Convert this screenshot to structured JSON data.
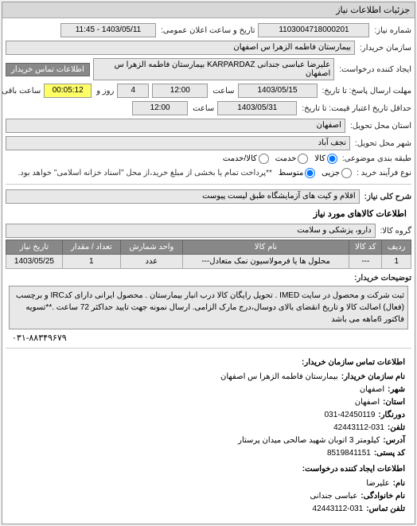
{
  "panel_title": "جزئیات اطلاعات نیاز",
  "form": {
    "req_no_lbl": "شماره نیاز:",
    "req_no": "1103004718000201",
    "announce_lbl": "تاریخ و ساعت اعلان عمومی:",
    "announce": "1403/05/11 - 11:45",
    "buyer_lbl": "سازمان خریدار:",
    "buyer": "بیمارستان فاطمه الزهرا س  اصفهان",
    "creator_lbl": "ایجاد کننده درخواست:",
    "creator": "علیرضا عباسی جندانی KARPARDAZ بیمارستان فاطمه الزهرا س  اصفهان",
    "contact_btn": "اطلاعات تماس خریدار",
    "deadline_lbl": "مهلت ارسال پاسخ: تا تاریخ:",
    "deadline_date": "1403/05/15",
    "deadline_time_lbl": "ساعت",
    "deadline_time": "12:00",
    "days_lbl": "روز و",
    "days": "4",
    "timer": "00:05:12",
    "remain_lbl": "ساعت باقی مانده",
    "credit_lbl": "حداقل تاریخ اعتبار قیمت: تا تاریخ:",
    "credit_date": "1403/05/31",
    "credit_time_lbl": "ساعت",
    "credit_time": "12:00",
    "province_lbl": "استان محل تحویل:",
    "province": "اصفهان",
    "city_lbl": "شهر محل تحویل:",
    "city": "نجف آباد",
    "package_lbl": "طبقه بندی موضوعی:",
    "pkg_goods": "کالا",
    "pkg_service": "خدمت",
    "pkg_both": "کالا/خدمت",
    "buy_type_lbl": "نوع فرآیند خرید :",
    "buy_small": "جزیی",
    "buy_mid": "متوسط",
    "buy_note": "**پرداخت تمام یا بخشی از مبلغ خرید،از محل \"اسناد خزانه اسلامی\" خواهد بود.",
    "desc_lbl": "شرح کلی نیاز:",
    "desc": "اقلام و کیت های آزمایشگاه طبق لیست پیوست"
  },
  "items_title": "اطلاعات کالاهای مورد نیاز",
  "group_lbl": "گروه کالا:",
  "group": "دارو، پزشکی و سلامت",
  "table": {
    "headers": [
      "ردیف",
      "کد کالا",
      "نام کالا",
      "واحد شمارش",
      "تعداد / مقدار",
      "تاریخ نیاز"
    ],
    "rows": [
      [
        "1",
        "---",
        "محلول ها یا فرمولاسیون نمک متعادل---",
        "عدد",
        "1",
        "1403/05/25"
      ]
    ]
  },
  "buyer_desc_lbl": "توضیحات خریدار:",
  "buyer_desc": "ثبت شرکت و محصول در سایت IMED . تحویل رایگان کالا درب انبار بیمارستان . محصول ایرانی دارای کدIRC و برچسب (فعال) اصالت کالا و تاریخ انقضای بالای دوسال،درج مارک الزامی. ارسال نمونه جهت تایید حداکثر 72 ساعت .**تسویه فاکتور 6ماهه می باشد",
  "phone_line": "۰۳۱-۸۸۳۴۹۶۷۹",
  "contact": {
    "title": "اطلاعات تماس سازمان خریدار:",
    "org_lbl": "نام سازمان خریدار:",
    "org": "بیمارستان فاطمه الزهرا س اصفهان",
    "city_lbl": "شهر:",
    "city": "اصفهان",
    "prov_lbl": "استان:",
    "prov": "اصفهان",
    "fax_lbl": "دورنگار:",
    "fax": "031-42450119",
    "tel_lbl": "تلفن:",
    "tel": "42443112-031",
    "addr_lbl": "آدرس:",
    "addr": "کیلومتر 3 اتوبان شهید صالحی میدان پرستار",
    "post_lbl": "کد پستی:",
    "post": "8519841151",
    "req_title": "اطلاعات ایجاد کننده درخواست:",
    "name_lbl": "نام:",
    "name": "علیرضا",
    "family_lbl": "نام خانوادگی:",
    "family": "عباسی جندانی",
    "mtel_lbl": "تلفن تماس:",
    "mtel": "42443112-031"
  }
}
